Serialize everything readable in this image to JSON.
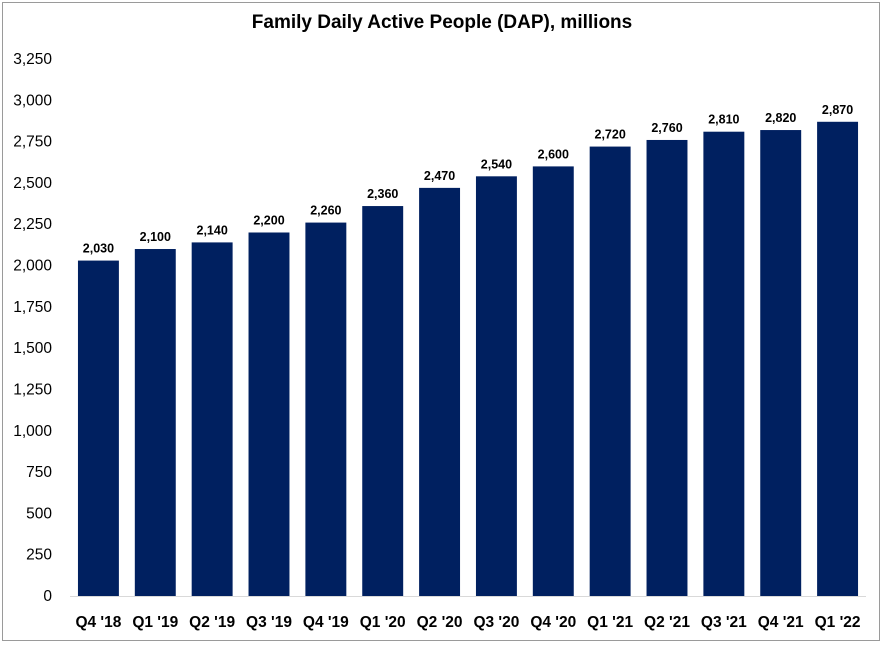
{
  "chart_data": {
    "type": "bar",
    "title": "Family Daily Active People (DAP), millions",
    "xlabel": "",
    "ylabel": "",
    "categories": [
      "Q4 '18",
      "Q1 '19",
      "Q2 '19",
      "Q3 '19",
      "Q4 '19",
      "Q1 '20",
      "Q2 '20",
      "Q3 '20",
      "Q4 '20",
      "Q1 '21",
      "Q2 '21",
      "Q3 '21",
      "Q4 '21",
      "Q1 '22"
    ],
    "values": [
      2030,
      2100,
      2140,
      2200,
      2260,
      2360,
      2470,
      2540,
      2600,
      2720,
      2760,
      2810,
      2820,
      2870
    ],
    "value_labels": [
      "2,030",
      "2,100",
      "2,140",
      "2,200",
      "2,260",
      "2,360",
      "2,470",
      "2,540",
      "2,600",
      "2,720",
      "2,760",
      "2,810",
      "2,820",
      "2,870"
    ],
    "ylim": [
      0,
      3250
    ],
    "yticks": [
      0,
      250,
      500,
      750,
      1000,
      1250,
      1500,
      1750,
      2000,
      2250,
      2500,
      2750,
      3000,
      3250
    ],
    "ytick_labels": [
      "0",
      "250",
      "500",
      "750",
      "1,000",
      "1,250",
      "1,500",
      "1,750",
      "2,000",
      "2,250",
      "2,500",
      "2,750",
      "3,000",
      "3,250"
    ],
    "grid": false,
    "legend": "none",
    "bar_color": "#002060"
  }
}
